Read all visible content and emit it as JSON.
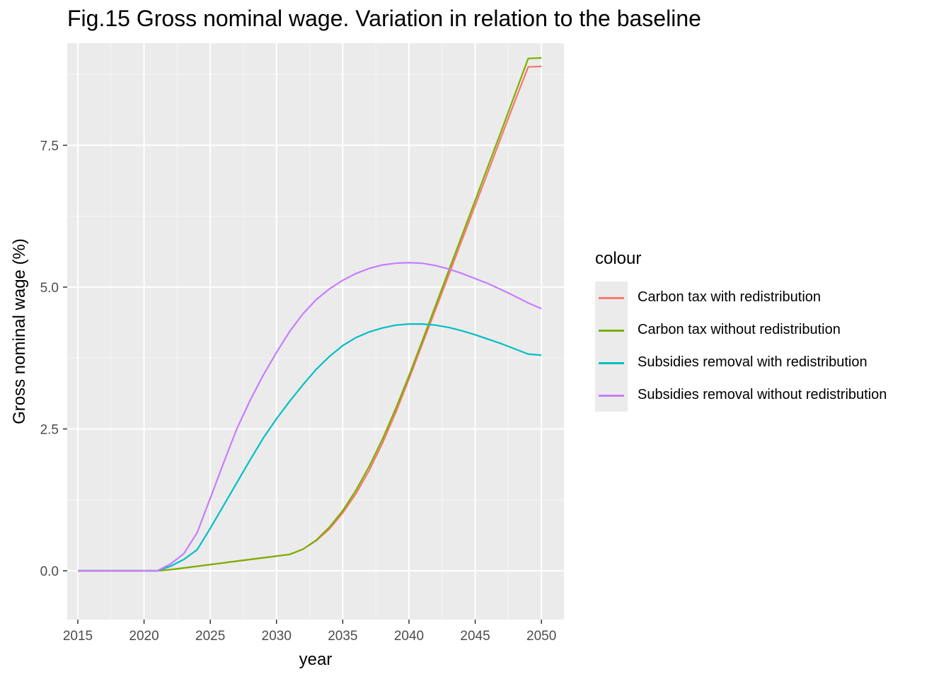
{
  "chart_data": {
    "type": "line",
    "title": "Fig.15 Gross nominal wage. Variation in relation to the baseline",
    "xlabel": "year",
    "ylabel": "Gross nominal wage (%)",
    "xlim": [
      2014.2,
      2051.7
    ],
    "ylim": [
      -0.86,
      9.3
    ],
    "x_ticks": [
      2015,
      2020,
      2025,
      2030,
      2035,
      2040,
      2045,
      2050
    ],
    "y_ticks": [
      0.0,
      2.5,
      5.0,
      7.5
    ],
    "y_tick_labels": [
      "0.0",
      "2.5",
      "5.0",
      "7.5"
    ],
    "legend_title": "colour",
    "legend_position": "right",
    "grid": true,
    "x": [
      2015,
      2016,
      2017,
      2018,
      2019,
      2020,
      2021,
      2022,
      2023,
      2024,
      2025,
      2026,
      2027,
      2028,
      2029,
      2030,
      2031,
      2032,
      2033,
      2034,
      2035,
      2036,
      2037,
      2038,
      2039,
      2040,
      2041,
      2042,
      2043,
      2044,
      2045,
      2046,
      2047,
      2048,
      2049,
      2050
    ],
    "series": [
      {
        "name": "Carbon tax with redistribution",
        "color": "#f8766d",
        "values": [
          0,
          0,
          0,
          0,
          0,
          0,
          0,
          0.02,
          0.05,
          0.08,
          0.11,
          0.14,
          0.17,
          0.2,
          0.23,
          0.26,
          0.29,
          0.38,
          0.53,
          0.74,
          1.02,
          1.36,
          1.77,
          2.25,
          2.79,
          3.38,
          3.99,
          4.6,
          5.21,
          5.83,
          6.44,
          7.05,
          7.67,
          8.28,
          8.88,
          8.89
        ]
      },
      {
        "name": "Carbon tax without redistribution",
        "color": "#7cae00",
        "values": [
          0,
          0,
          0,
          0,
          0,
          0,
          0,
          0.02,
          0.05,
          0.08,
          0.11,
          0.14,
          0.17,
          0.2,
          0.23,
          0.26,
          0.29,
          0.38,
          0.54,
          0.77,
          1.06,
          1.42,
          1.84,
          2.32,
          2.86,
          3.44,
          4.05,
          4.67,
          5.29,
          5.91,
          6.53,
          7.15,
          7.77,
          8.4,
          9.03,
          9.04
        ]
      },
      {
        "name": "Subsidies removal with redistribution",
        "color": "#00bfc4",
        "values": [
          0,
          0,
          0,
          0,
          0,
          0,
          0,
          0.08,
          0.2,
          0.37,
          0.75,
          1.15,
          1.55,
          1.95,
          2.34,
          2.68,
          2.99,
          3.28,
          3.55,
          3.78,
          3.97,
          4.11,
          4.21,
          4.28,
          4.33,
          4.35,
          4.35,
          4.33,
          4.29,
          4.23,
          4.16,
          4.08,
          4.0,
          3.91,
          3.82,
          3.8
        ]
      },
      {
        "name": "Subsidies removal without redistribution",
        "color": "#c77cff",
        "values": [
          0,
          0,
          0,
          0,
          0,
          0,
          0,
          0.12,
          0.3,
          0.67,
          1.28,
          1.9,
          2.5,
          3.0,
          3.45,
          3.85,
          4.22,
          4.53,
          4.78,
          4.97,
          5.12,
          5.24,
          5.33,
          5.39,
          5.42,
          5.43,
          5.42,
          5.38,
          5.32,
          5.24,
          5.15,
          5.06,
          4.95,
          4.84,
          4.72,
          4.62
        ]
      }
    ]
  }
}
